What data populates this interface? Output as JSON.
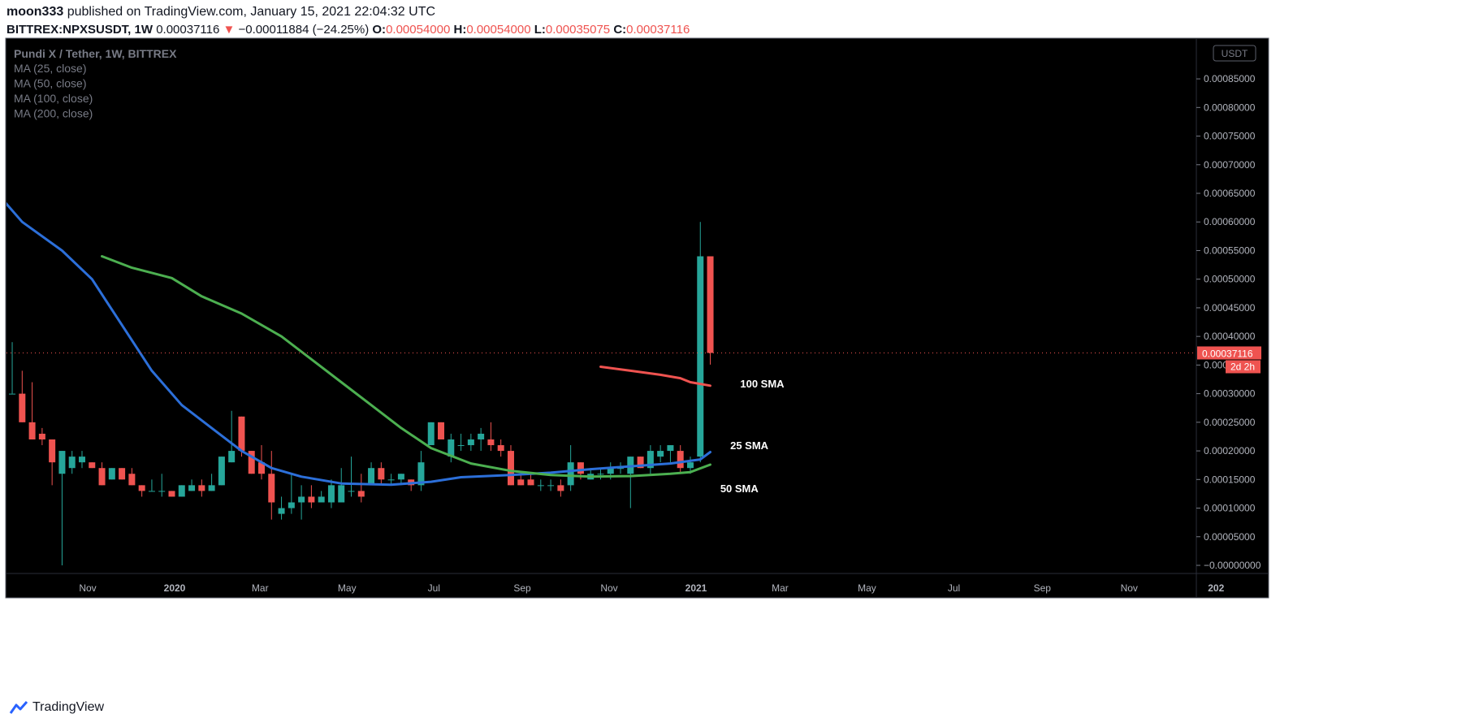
{
  "header": {
    "author": "moon333",
    "published_text": "published on TradingView.com, January 15, 2021 22:04:32 UTC",
    "symbol": "BITTREX:NPXSUSDT, 1W",
    "last": "0.00037116",
    "change_arrow": "▼",
    "change": "−0.00011884 (−24.25%)",
    "o_label": "O:",
    "o_value": "0.00054000",
    "h_label": "H:",
    "h_value": "0.00054000",
    "l_label": "L:",
    "l_value": "0.00035075",
    "c_label": "C:",
    "c_value": "0.00037116"
  },
  "footer": {
    "brand": "TradingView"
  },
  "colors": {
    "up": "#26a69a",
    "down": "#ef5350",
    "ma25": "#2c6fd9",
    "ma50": "#4caf50",
    "ma100": "#ef5350",
    "background": "#000000"
  },
  "chart_data": {
    "type": "candlestick",
    "title": "Pundi X / Tether, 1W, BITTREX",
    "legend": [
      "MA (25, close)",
      "MA (50, close)",
      "MA (100, close)",
      "MA (200, close)"
    ],
    "legend_position": "top-left",
    "currency_label": "USDT",
    "ylim": [
      -5e-08,
      0.00092
    ],
    "y_ticks": [
      "0.00085000",
      "0.00080000",
      "0.00075000",
      "0.00070000",
      "0.00065000",
      "0.00060000",
      "0.00055000",
      "0.00050000",
      "0.00045000",
      "0.00040000",
      "0.00035000",
      "0.00030000",
      "0.00025000",
      "0.00020000",
      "0.00015000",
      "0.00010000",
      "0.00005000",
      "−0.00000000"
    ],
    "y_tick_values": [
      0.00085,
      0.0008,
      0.00075,
      0.0007,
      0.00065,
      0.0006,
      0.00055,
      0.0005,
      0.00045,
      0.0004,
      0.00035,
      0.0003,
      0.00025,
      0.0002,
      0.00015,
      0.0001,
      5e-05,
      0
    ],
    "x_ticks": [
      {
        "label": "Nov",
        "date": "2019-11-01"
      },
      {
        "label": "2020",
        "date": "2020-01-01"
      },
      {
        "label": "Mar",
        "date": "2020-03-01"
      },
      {
        "label": "May",
        "date": "2020-05-01"
      },
      {
        "label": "Jul",
        "date": "2020-07-01"
      },
      {
        "label": "Sep",
        "date": "2020-09-01"
      },
      {
        "label": "Nov",
        "date": "2020-11-01"
      },
      {
        "label": "2021",
        "date": "2021-01-01"
      },
      {
        "label": "Mar",
        "date": "2021-03-01"
      },
      {
        "label": "May",
        "date": "2021-05-01"
      },
      {
        "label": "Jul",
        "date": "2021-07-01"
      },
      {
        "label": "Sep",
        "date": "2021-09-01"
      },
      {
        "label": "Nov",
        "date": "2021-11-01"
      },
      {
        "label": "202",
        "date": "2022-01-01"
      }
    ],
    "last_price_label": "0.00037116",
    "countdown_label": "2d 2h",
    "candles": [
      {
        "date": "2019-09-02",
        "o": 0.00044,
        "h": 0.00044,
        "l": 0.00031,
        "c": 0.00033
      },
      {
        "date": "2019-09-09",
        "o": 0.0003,
        "h": 0.00039,
        "l": 0.0003,
        "c": 0.0003
      },
      {
        "date": "2019-09-16",
        "o": 0.0003,
        "h": 0.00034,
        "l": 0.00025,
        "c": 0.00025
      },
      {
        "date": "2019-09-23",
        "o": 0.00025,
        "h": 0.00032,
        "l": 0.00022,
        "c": 0.00022
      },
      {
        "date": "2019-09-30",
        "o": 0.00023,
        "h": 0.00024,
        "l": 0.00021,
        "c": 0.00022
      },
      {
        "date": "2019-10-07",
        "o": 0.00022,
        "h": 0.00022,
        "l": 0.00014,
        "c": 0.00018
      },
      {
        "date": "2019-10-14",
        "o": 0.00016,
        "h": 0.0002,
        "l": 0.0,
        "c": 0.0002
      },
      {
        "date": "2019-10-21",
        "o": 0.00017,
        "h": 0.0002,
        "l": 0.00016,
        "c": 0.00019
      },
      {
        "date": "2019-10-28",
        "o": 0.00018,
        "h": 0.0002,
        "l": 0.00017,
        "c": 0.00019
      },
      {
        "date": "2019-11-04",
        "o": 0.00018,
        "h": 0.00018,
        "l": 0.00017,
        "c": 0.00017
      },
      {
        "date": "2019-11-11",
        "o": 0.00017,
        "h": 0.00018,
        "l": 0.00014,
        "c": 0.00014
      },
      {
        "date": "2019-11-18",
        "o": 0.00015,
        "h": 0.00017,
        "l": 0.00015,
        "c": 0.00017
      },
      {
        "date": "2019-11-25",
        "o": 0.00017,
        "h": 0.00017,
        "l": 0.00015,
        "c": 0.00015
      },
      {
        "date": "2019-12-02",
        "o": 0.00016,
        "h": 0.00017,
        "l": 0.00014,
        "c": 0.00014
      },
      {
        "date": "2019-12-09",
        "o": 0.00014,
        "h": 0.00014,
        "l": 0.00012,
        "c": 0.00013
      },
      {
        "date": "2019-12-16",
        "o": 0.00013,
        "h": 0.00015,
        "l": 0.00013,
        "c": 0.00013
      },
      {
        "date": "2019-12-23",
        "o": 0.00013,
        "h": 0.00016,
        "l": 0.00012,
        "c": 0.00013
      },
      {
        "date": "2019-12-30",
        "o": 0.00013,
        "h": 0.00013,
        "l": 0.00012,
        "c": 0.00012
      },
      {
        "date": "2020-01-06",
        "o": 0.00012,
        "h": 0.00014,
        "l": 0.00012,
        "c": 0.00014
      },
      {
        "date": "2020-01-13",
        "o": 0.00013,
        "h": 0.00015,
        "l": 0.00013,
        "c": 0.00014
      },
      {
        "date": "2020-01-20",
        "o": 0.00014,
        "h": 0.00015,
        "l": 0.00012,
        "c": 0.00013
      },
      {
        "date": "2020-01-27",
        "o": 0.00013,
        "h": 0.00016,
        "l": 0.00013,
        "c": 0.00014
      },
      {
        "date": "2020-02-03",
        "o": 0.00014,
        "h": 0.00019,
        "l": 0.00014,
        "c": 0.00019
      },
      {
        "date": "2020-02-10",
        "o": 0.00018,
        "h": 0.00027,
        "l": 0.00018,
        "c": 0.0002
      },
      {
        "date": "2020-02-17",
        "o": 0.00026,
        "h": 0.00026,
        "l": 0.00019,
        "c": 0.0002
      },
      {
        "date": "2020-02-24",
        "o": 0.0002,
        "h": 0.0002,
        "l": 0.00016,
        "c": 0.00016
      },
      {
        "date": "2020-03-02",
        "o": 0.00018,
        "h": 0.00021,
        "l": 0.00015,
        "c": 0.00016
      },
      {
        "date": "2020-03-09",
        "o": 0.00016,
        "h": 0.0002,
        "l": 8e-05,
        "c": 0.00011
      },
      {
        "date": "2020-03-16",
        "o": 9e-05,
        "h": 0.00012,
        "l": 8e-05,
        "c": 0.0001
      },
      {
        "date": "2020-03-23",
        "o": 0.0001,
        "h": 0.00016,
        "l": 9e-05,
        "c": 0.00011
      },
      {
        "date": "2020-03-30",
        "o": 0.00011,
        "h": 0.00014,
        "l": 8e-05,
        "c": 0.00012
      },
      {
        "date": "2020-04-06",
        "o": 0.00012,
        "h": 0.00014,
        "l": 0.0001,
        "c": 0.00011
      },
      {
        "date": "2020-04-13",
        "o": 0.00011,
        "h": 0.00013,
        "l": 0.00011,
        "c": 0.00012
      },
      {
        "date": "2020-04-20",
        "o": 0.00011,
        "h": 0.00015,
        "l": 0.0001,
        "c": 0.00014
      },
      {
        "date": "2020-04-27",
        "o": 0.00011,
        "h": 0.00017,
        "l": 0.00011,
        "c": 0.00014
      },
      {
        "date": "2020-05-04",
        "o": 0.00013,
        "h": 0.00019,
        "l": 0.00012,
        "c": 0.00013
      },
      {
        "date": "2020-05-11",
        "o": 0.00013,
        "h": 0.00016,
        "l": 0.00011,
        "c": 0.00012
      },
      {
        "date": "2020-05-18",
        "o": 0.00014,
        "h": 0.00018,
        "l": 0.00014,
        "c": 0.00017
      },
      {
        "date": "2020-05-25",
        "o": 0.00017,
        "h": 0.00018,
        "l": 0.00014,
        "c": 0.00015
      },
      {
        "date": "2020-06-01",
        "o": 0.00015,
        "h": 0.00016,
        "l": 0.00014,
        "c": 0.00015
      },
      {
        "date": "2020-06-08",
        "o": 0.00015,
        "h": 0.00016,
        "l": 0.00014,
        "c": 0.00016
      },
      {
        "date": "2020-06-15",
        "o": 0.00015,
        "h": 0.00015,
        "l": 0.00013,
        "c": 0.00014
      },
      {
        "date": "2020-06-22",
        "o": 0.00014,
        "h": 0.0002,
        "l": 0.00013,
        "c": 0.00018
      },
      {
        "date": "2020-06-29",
        "o": 0.00021,
        "h": 0.00025,
        "l": 0.00021,
        "c": 0.00025
      },
      {
        "date": "2020-07-06",
        "o": 0.00025,
        "h": 0.00025,
        "l": 0.00022,
        "c": 0.00022
      },
      {
        "date": "2020-07-13",
        "o": 0.00019,
        "h": 0.00023,
        "l": 0.00018,
        "c": 0.00022
      },
      {
        "date": "2020-07-20",
        "o": 0.00021,
        "h": 0.00023,
        "l": 0.0002,
        "c": 0.00021
      },
      {
        "date": "2020-07-27",
        "o": 0.00021,
        "h": 0.00023,
        "l": 0.0002,
        "c": 0.00022
      },
      {
        "date": "2020-08-03",
        "o": 0.00022,
        "h": 0.00024,
        "l": 0.0002,
        "c": 0.00023
      },
      {
        "date": "2020-08-10",
        "o": 0.00022,
        "h": 0.00025,
        "l": 0.0002,
        "c": 0.00021
      },
      {
        "date": "2020-08-17",
        "o": 0.00021,
        "h": 0.00022,
        "l": 0.00019,
        "c": 0.0002
      },
      {
        "date": "2020-08-24",
        "o": 0.0002,
        "h": 0.00021,
        "l": 0.00014,
        "c": 0.00014
      },
      {
        "date": "2020-08-31",
        "o": 0.00015,
        "h": 0.00016,
        "l": 0.00014,
        "c": 0.00014
      },
      {
        "date": "2020-09-07",
        "o": 0.00015,
        "h": 0.00016,
        "l": 0.00014,
        "c": 0.00014
      },
      {
        "date": "2020-09-14",
        "o": 0.00014,
        "h": 0.00015,
        "l": 0.00013,
        "c": 0.00014
      },
      {
        "date": "2020-09-21",
        "o": 0.00014,
        "h": 0.00015,
        "l": 0.00013,
        "c": 0.00014
      },
      {
        "date": "2020-09-28",
        "o": 0.00014,
        "h": 0.00015,
        "l": 0.00012,
        "c": 0.00013
      },
      {
        "date": "2020-10-05",
        "o": 0.00014,
        "h": 0.00021,
        "l": 0.00013,
        "c": 0.00018
      },
      {
        "date": "2020-10-12",
        "o": 0.00018,
        "h": 0.00018,
        "l": 0.00015,
        "c": 0.00016
      },
      {
        "date": "2020-10-19",
        "o": 0.00015,
        "h": 0.00017,
        "l": 0.00015,
        "c": 0.00016
      },
      {
        "date": "2020-10-26",
        "o": 0.00016,
        "h": 0.00017,
        "l": 0.00015,
        "c": 0.00016
      },
      {
        "date": "2020-11-02",
        "o": 0.00016,
        "h": 0.00018,
        "l": 0.00015,
        "c": 0.00017
      },
      {
        "date": "2020-11-09",
        "o": 0.00017,
        "h": 0.00018,
        "l": 0.00016,
        "c": 0.00017
      },
      {
        "date": "2020-11-16",
        "o": 0.00016,
        "h": 0.00019,
        "l": 0.0001,
        "c": 0.00019
      },
      {
        "date": "2020-11-23",
        "o": 0.00019,
        "h": 0.00019,
        "l": 0.00017,
        "c": 0.00017
      },
      {
        "date": "2020-11-30",
        "o": 0.00017,
        "h": 0.00021,
        "l": 0.00016,
        "c": 0.0002
      },
      {
        "date": "2020-12-07",
        "o": 0.00019,
        "h": 0.00021,
        "l": 0.00018,
        "c": 0.0002
      },
      {
        "date": "2020-12-14",
        "o": 0.0002,
        "h": 0.00021,
        "l": 0.00018,
        "c": 0.00021
      },
      {
        "date": "2020-12-21",
        "o": 0.0002,
        "h": 0.00021,
        "l": 0.00016,
        "c": 0.00017
      },
      {
        "date": "2020-12-28",
        "o": 0.00017,
        "h": 0.00019,
        "l": 0.00016,
        "c": 0.00018
      },
      {
        "date": "2021-01-04",
        "o": 0.00019,
        "h": 0.0006,
        "l": 0.00018,
        "c": 0.00054
      },
      {
        "date": "2021-01-11",
        "o": 0.00054,
        "h": 0.00054,
        "l": 0.00035075,
        "c": 0.00037116
      }
    ],
    "ma_series": [
      {
        "name": "25 SMA",
        "color": "#2c6fd9",
        "label_date": "2021-01-25",
        "label_value": 0.00021,
        "points": [
          {
            "date": "2019-08-26",
            "v": 0.00066
          },
          {
            "date": "2019-09-16",
            "v": 0.0006
          },
          {
            "date": "2019-10-14",
            "v": 0.00055
          },
          {
            "date": "2019-11-04",
            "v": 0.0005
          },
          {
            "date": "2019-11-25",
            "v": 0.00042
          },
          {
            "date": "2019-12-16",
            "v": 0.00034
          },
          {
            "date": "2020-01-06",
            "v": 0.00028
          },
          {
            "date": "2020-01-27",
            "v": 0.00024
          },
          {
            "date": "2020-02-17",
            "v": 0.0002
          },
          {
            "date": "2020-03-09",
            "v": 0.00017
          },
          {
            "date": "2020-03-30",
            "v": 0.000155
          },
          {
            "date": "2020-04-27",
            "v": 0.000143
          },
          {
            "date": "2020-06-01",
            "v": 0.000141
          },
          {
            "date": "2020-06-29",
            "v": 0.000146
          },
          {
            "date": "2020-07-20",
            "v": 0.000154
          },
          {
            "date": "2020-08-24",
            "v": 0.000158
          },
          {
            "date": "2020-09-21",
            "v": 0.000162
          },
          {
            "date": "2020-10-19",
            "v": 0.000168
          },
          {
            "date": "2020-11-16",
            "v": 0.000173
          },
          {
            "date": "2020-12-14",
            "v": 0.000178
          },
          {
            "date": "2021-01-04",
            "v": 0.000185
          },
          {
            "date": "2021-01-11",
            "v": 0.000198
          }
        ]
      },
      {
        "name": "50 SMA",
        "color": "#4caf50",
        "label_date": "2021-01-18",
        "label_value": 0.000135,
        "points": [
          {
            "date": "2019-11-11",
            "v": 0.00054
          },
          {
            "date": "2019-12-02",
            "v": 0.00052
          },
          {
            "date": "2019-12-30",
            "v": 0.000502
          },
          {
            "date": "2020-01-20",
            "v": 0.00047
          },
          {
            "date": "2020-02-17",
            "v": 0.00044
          },
          {
            "date": "2020-03-16",
            "v": 0.0004
          },
          {
            "date": "2020-04-06",
            "v": 0.00036
          },
          {
            "date": "2020-04-27",
            "v": 0.00032
          },
          {
            "date": "2020-05-18",
            "v": 0.00028
          },
          {
            "date": "2020-06-08",
            "v": 0.00024
          },
          {
            "date": "2020-06-29",
            "v": 0.000205
          },
          {
            "date": "2020-07-27",
            "v": 0.000178
          },
          {
            "date": "2020-08-24",
            "v": 0.000165
          },
          {
            "date": "2020-09-21",
            "v": 0.000158
          },
          {
            "date": "2020-10-19",
            "v": 0.000155
          },
          {
            "date": "2020-11-16",
            "v": 0.000156
          },
          {
            "date": "2020-12-14",
            "v": 0.00016
          },
          {
            "date": "2020-12-28",
            "v": 0.000163
          },
          {
            "date": "2021-01-11",
            "v": 0.000176
          }
        ]
      },
      {
        "name": "100 SMA",
        "color": "#ef5350",
        "label_date": "2021-02-01",
        "label_value": 0.000318,
        "points": [
          {
            "date": "2020-10-26",
            "v": 0.000347
          },
          {
            "date": "2020-11-16",
            "v": 0.00034
          },
          {
            "date": "2020-12-07",
            "v": 0.000333
          },
          {
            "date": "2020-12-21",
            "v": 0.000327
          },
          {
            "date": "2020-12-28",
            "v": 0.00032
          },
          {
            "date": "2021-01-11",
            "v": 0.000314
          }
        ]
      }
    ]
  }
}
